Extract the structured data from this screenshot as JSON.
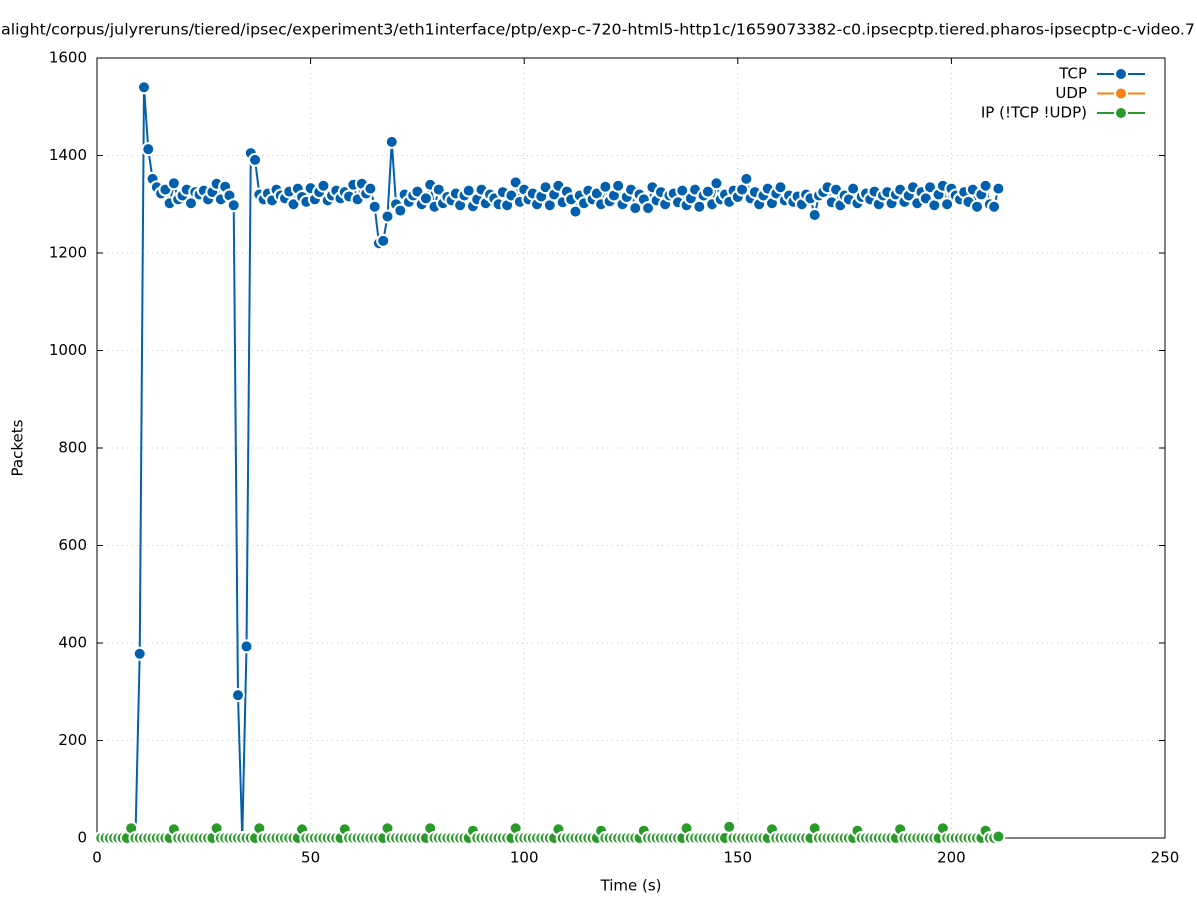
{
  "chart_data": {
    "type": "line",
    "title": "alight/corpus/julyreruns/tiered/ipsec/experiment3/eth1interface/ptp/exp-c-720-html5-http1c/1659073382-c0.ipsecptp.tiered.pharos-ipsecptp-c-video.7",
    "x_label": "Time (s)",
    "y_label": "Packets",
    "xlim": [
      0,
      250
    ],
    "xticks": [
      0,
      50,
      100,
      150,
      200,
      250
    ],
    "ylim": [
      0,
      1600
    ],
    "yticks": [
      0,
      200,
      400,
      600,
      800,
      1000,
      1200,
      1400,
      1600
    ],
    "grid": true,
    "legend": "top-right",
    "x": [
      1,
      2,
      3,
      4,
      5,
      6,
      7,
      8,
      9,
      10,
      11,
      12,
      13,
      14,
      15,
      16,
      17,
      18,
      19,
      20,
      21,
      22,
      23,
      24,
      25,
      26,
      27,
      28,
      29,
      30,
      31,
      32,
      33,
      34,
      35,
      36,
      37,
      38,
      39,
      40,
      41,
      42,
      43,
      44,
      45,
      46,
      47,
      48,
      49,
      50,
      51,
      52,
      53,
      54,
      55,
      56,
      57,
      58,
      59,
      60,
      61,
      62,
      63,
      64,
      65,
      66,
      67,
      68,
      69,
      70,
      71,
      72,
      73,
      74,
      75,
      76,
      77,
      78,
      79,
      80,
      81,
      82,
      83,
      84,
      85,
      86,
      87,
      88,
      89,
      90,
      91,
      92,
      93,
      94,
      95,
      96,
      97,
      98,
      99,
      100,
      101,
      102,
      103,
      104,
      105,
      106,
      107,
      108,
      109,
      110,
      111,
      112,
      113,
      114,
      115,
      116,
      117,
      118,
      119,
      120,
      121,
      122,
      123,
      124,
      125,
      126,
      127,
      128,
      129,
      130,
      131,
      132,
      133,
      134,
      135,
      136,
      137,
      138,
      139,
      140,
      141,
      142,
      143,
      144,
      145,
      146,
      147,
      148,
      149,
      150,
      151,
      152,
      153,
      154,
      155,
      156,
      157,
      158,
      159,
      160,
      161,
      162,
      163,
      164,
      165,
      166,
      167,
      168,
      169,
      170,
      171,
      172,
      173,
      174,
      175,
      176,
      177,
      178,
      179,
      180,
      181,
      182,
      183,
      184,
      185,
      186,
      187,
      188,
      189,
      190,
      191,
      192,
      193,
      194,
      195,
      196,
      197,
      198,
      199,
      200,
      201,
      202,
      203,
      204,
      205,
      206,
      207,
      208,
      209,
      210,
      211
    ],
    "series": [
      {
        "name": "TCP",
        "color": "#0060ad",
        "values": [
          0,
          0,
          0,
          0,
          0,
          0,
          0,
          0,
          0,
          378,
          1540,
          1413,
          1352,
          1335,
          1322,
          1330,
          1302,
          1343,
          1310,
          1318,
          1330,
          1302,
          1325,
          1320,
          1328,
          1310,
          1325,
          1342,
          1310,
          1336,
          1318,
          1298,
          293,
          0,
          393,
          1405,
          1391,
          1320,
          1310,
          1322,
          1308,
          1330,
          1318,
          1312,
          1326,
          1300,
          1332,
          1315,
          1305,
          1333,
          1310,
          1325,
          1338,
          1308,
          1318,
          1328,
          1312,
          1325,
          1316,
          1340,
          1310,
          1342,
          1322,
          1332,
          1295,
          1220,
          1225,
          1275,
          1428,
          1300,
          1287,
          1320,
          1305,
          1318,
          1326,
          1300,
          1312,
          1340,
          1295,
          1330,
          1302,
          1315,
          1308,
          1322,
          1298,
          1318,
          1328,
          1296,
          1310,
          1330,
          1302,
          1320,
          1312,
          1300,
          1325,
          1298,
          1318,
          1345,
          1305,
          1330,
          1310,
          1322,
          1300,
          1316,
          1335,
          1298,
          1320,
          1338,
          1304,
          1326,
          1310,
          1285,
          1318,
          1302,
          1328,
          1310,
          1322,
          1300,
          1336,
          1306,
          1318,
          1338,
          1300,
          1315,
          1330,
          1292,
          1320,
          1310,
          1292,
          1335,
          1308,
          1325,
          1300,
          1318,
          1322,
          1304,
          1328,
          1298,
          1312,
          1330,
          1295,
          1318,
          1326,
          1300,
          1343,
          1310,
          1320,
          1305,
          1328,
          1315,
          1330,
          1352,
          1312,
          1325,
          1300,
          1318,
          1332,
          1302,
          1322,
          1335,
          1308,
          1318,
          1305,
          1316,
          1300,
          1320,
          1312,
          1278,
          1318,
          1325,
          1335,
          1304,
          1330,
          1298,
          1318,
          1310,
          1332,
          1302,
          1315,
          1322,
          1310,
          1326,
          1300,
          1318,
          1325,
          1302,
          1320,
          1330,
          1305,
          1318,
          1335,
          1302,
          1325,
          1312,
          1335,
          1298,
          1320,
          1338,
          1300,
          1332,
          1318,
          1310,
          1325,
          1305,
          1330,
          1295,
          1320,
          1338,
          1300,
          1295,
          1332
        ]
      },
      {
        "name": "UDP",
        "color": "#ff7f0e",
        "values": [
          null,
          null,
          null,
          null,
          null,
          null,
          null,
          null,
          null,
          null,
          null,
          null,
          null,
          null,
          null,
          null,
          null,
          null,
          null,
          null,
          null,
          null,
          null,
          null,
          null,
          null,
          null,
          null,
          null,
          null,
          null,
          null,
          null,
          null,
          null,
          null,
          null,
          null,
          null,
          null,
          null,
          null,
          null,
          null,
          null,
          null,
          null,
          null,
          null,
          null,
          null,
          null,
          null,
          null,
          null,
          null,
          null,
          null,
          null,
          null,
          null,
          null,
          null,
          null,
          null,
          null,
          null,
          null,
          null,
          null,
          null,
          null,
          null,
          null,
          null,
          null,
          null,
          null,
          null,
          null,
          null,
          null,
          null,
          null,
          null,
          null,
          null,
          null,
          null,
          null,
          null,
          null,
          null,
          null,
          null,
          null,
          null,
          null,
          null,
          null,
          null,
          null,
          null,
          null,
          null,
          null,
          null,
          null,
          null,
          null,
          null,
          null,
          null,
          null,
          null,
          null,
          null,
          null,
          null,
          null,
          null,
          null,
          null,
          null,
          null,
          null,
          null,
          null,
          null,
          null,
          null,
          null,
          null,
          null,
          null,
          null,
          null,
          null,
          null,
          null,
          null,
          null,
          null,
          null,
          null,
          null,
          null,
          null,
          null,
          null,
          null,
          null,
          null,
          null,
          null,
          null,
          null,
          null,
          null,
          null,
          null,
          null,
          null,
          null,
          null,
          null,
          null,
          null,
          null,
          null,
          null,
          null,
          null,
          null,
          null,
          null,
          null,
          null,
          null,
          null,
          null,
          null,
          null,
          null,
          null,
          null,
          null,
          null,
          null,
          null,
          null,
          null,
          null,
          null,
          null,
          null,
          null,
          null,
          null,
          null,
          null,
          null,
          null,
          null,
          null,
          null,
          null,
          null,
          null,
          null,
          null
        ]
      },
      {
        "name": "IP (!TCP  !UDP)",
        "color": "#2a9b2a",
        "values": [
          0,
          0,
          0,
          0,
          0,
          0,
          0,
          20,
          0,
          0,
          0,
          0,
          0,
          0,
          0,
          0,
          0,
          18,
          0,
          0,
          0,
          0,
          0,
          0,
          0,
          0,
          0,
          20,
          0,
          0,
          0,
          0,
          0,
          0,
          0,
          0,
          0,
          20,
          0,
          0,
          0,
          0,
          0,
          0,
          0,
          0,
          0,
          18,
          0,
          0,
          0,
          0,
          0,
          0,
          0,
          0,
          0,
          18,
          0,
          0,
          0,
          0,
          0,
          0,
          0,
          0,
          0,
          20,
          0,
          0,
          0,
          0,
          0,
          0,
          0,
          0,
          0,
          20,
          0,
          0,
          0,
          0,
          0,
          0,
          0,
          0,
          0,
          15,
          0,
          0,
          0,
          0,
          0,
          0,
          0,
          0,
          0,
          20,
          0,
          0,
          0,
          0,
          0,
          0,
          0,
          0,
          0,
          18,
          0,
          0,
          0,
          0,
          0,
          0,
          0,
          0,
          0,
          15,
          0,
          0,
          0,
          0,
          0,
          0,
          0,
          0,
          0,
          15,
          0,
          0,
          0,
          0,
          0,
          0,
          0,
          0,
          0,
          20,
          0,
          0,
          0,
          0,
          0,
          0,
          0,
          0,
          0,
          23,
          0,
          0,
          0,
          0,
          0,
          0,
          0,
          0,
          0,
          18,
          0,
          0,
          0,
          0,
          0,
          0,
          0,
          0,
          0,
          20,
          0,
          0,
          0,
          0,
          0,
          0,
          0,
          0,
          0,
          15,
          0,
          0,
          0,
          0,
          0,
          0,
          0,
          0,
          0,
          18,
          0,
          0,
          0,
          0,
          0,
          0,
          0,
          0,
          0,
          20,
          0,
          0,
          0,
          0,
          0,
          0,
          0,
          0,
          0,
          15,
          0,
          0,
          3
        ]
      }
    ]
  }
}
